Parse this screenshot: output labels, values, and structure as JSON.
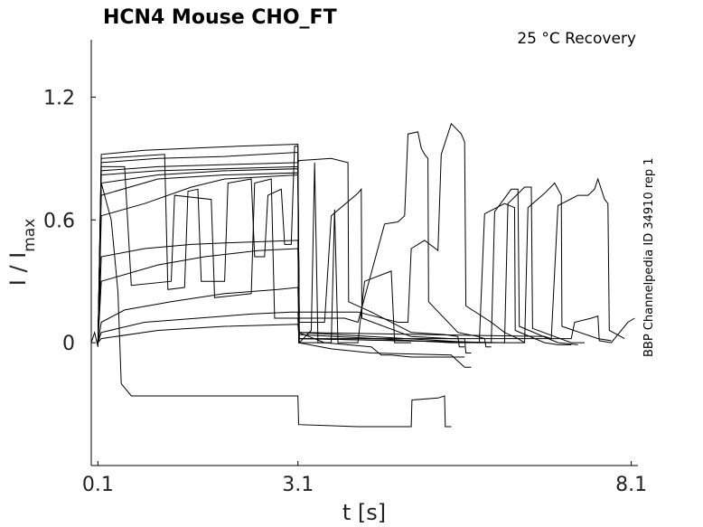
{
  "chart_data": {
    "type": "line",
    "title": "HCN4  Mouse  CHO_FT",
    "annotation": "25 °C  Recovery",
    "side_label": "BBP Channelpedia ID 34910 rep 1",
    "xlabel": "t [s]",
    "ylabel_main": "I / I",
    "ylabel_sub": "max",
    "xlim": [
      0.0,
      8.2
    ],
    "ylim": [
      -0.6,
      1.48
    ],
    "x_ticks": [
      0.1,
      3.1,
      8.1
    ],
    "x_tick_labels": [
      "0.1",
      "3.1",
      "8.1"
    ],
    "y_ticks": [
      0,
      0.6,
      1.2
    ],
    "y_tick_labels": [
      "0",
      "0.6",
      "1.2"
    ],
    "grid": false,
    "series": [
      {
        "points": [
          [
            0.0,
            0.0
          ],
          [
            0.05,
            0.05
          ],
          [
            0.1,
            -0.02
          ],
          [
            0.15,
            0.92
          ],
          [
            0.8,
            0.94
          ],
          [
            1.5,
            0.95
          ],
          [
            2.2,
            0.96
          ],
          [
            3.1,
            0.97
          ],
          [
            3.11,
            0.05
          ],
          [
            3.5,
            0.0
          ],
          [
            4.2,
            -0.02
          ],
          [
            4.35,
            -0.06
          ],
          [
            4.5,
            -0.06
          ],
          [
            4.8,
            -0.07
          ],
          [
            5.2,
            -0.07
          ],
          [
            5.6,
            -0.07
          ]
        ]
      },
      {
        "points": [
          [
            0.1,
            0.0
          ],
          [
            0.15,
            0.88
          ],
          [
            1.0,
            0.9
          ],
          [
            2.0,
            0.91
          ],
          [
            3.1,
            0.93
          ],
          [
            3.11,
            0.0
          ],
          [
            3.6,
            -0.03
          ],
          [
            4.2,
            -0.05
          ],
          [
            5.4,
            -0.06
          ],
          [
            5.6,
            -0.12
          ],
          [
            5.7,
            -0.12
          ]
        ]
      },
      {
        "points": [
          [
            0.1,
            0.0
          ],
          [
            0.15,
            0.84
          ],
          [
            1.0,
            0.86
          ],
          [
            2.0,
            0.87
          ],
          [
            3.1,
            0.88
          ],
          [
            3.12,
            0.89
          ],
          [
            3.6,
            0.9
          ],
          [
            3.85,
            0.88
          ],
          [
            3.86,
            0.2
          ],
          [
            4.2,
            0.15
          ],
          [
            4.8,
            0.05
          ],
          [
            5.3,
            0.04
          ],
          [
            5.5,
            0.03
          ],
          [
            5.52,
            -0.02
          ],
          [
            5.6,
            -0.02
          ]
        ]
      },
      {
        "points": [
          [
            0.1,
            0.0
          ],
          [
            0.15,
            0.82
          ],
          [
            1.0,
            0.84
          ],
          [
            2.0,
            0.85
          ],
          [
            3.1,
            0.86
          ],
          [
            3.12,
            0.1
          ],
          [
            3.5,
            0.1
          ],
          [
            3.6,
            0.62
          ],
          [
            4.0,
            0.73
          ],
          [
            4.05,
            0.75
          ],
          [
            4.06,
            0.12
          ],
          [
            4.8,
            0.03
          ],
          [
            5.4,
            0.02
          ],
          [
            5.6,
            0.02
          ],
          [
            5.62,
            -0.05
          ],
          [
            5.7,
            -0.05
          ]
        ]
      },
      {
        "points": [
          [
            0.1,
            0.0
          ],
          [
            0.15,
            0.78
          ],
          [
            1.0,
            0.82
          ],
          [
            2.0,
            0.84
          ],
          [
            3.1,
            0.85
          ],
          [
            3.12,
            0.12
          ],
          [
            3.8,
            0.12
          ],
          [
            4.0,
            0.1
          ],
          [
            4.4,
            0.58
          ],
          [
            4.6,
            0.59
          ],
          [
            4.7,
            0.62
          ],
          [
            4.75,
            1.02
          ],
          [
            4.9,
            1.03
          ],
          [
            4.95,
            0.95
          ],
          [
            5.0,
            0.92
          ],
          [
            5.05,
            0.9
          ],
          [
            5.06,
            0.2
          ],
          [
            5.5,
            0.05
          ],
          [
            5.8,
            0.03
          ],
          [
            5.9,
            0.02
          ],
          [
            5.92,
            -0.02
          ],
          [
            6.0,
            -0.02
          ]
        ]
      },
      {
        "points": [
          [
            0.1,
            0.0
          ],
          [
            0.15,
            0.72
          ],
          [
            1.0,
            0.8
          ],
          [
            2.0,
            0.82
          ],
          [
            3.1,
            0.83
          ],
          [
            3.12,
            0.15
          ],
          [
            4.0,
            0.15
          ],
          [
            4.6,
            0.1
          ],
          [
            4.75,
            0.1
          ],
          [
            4.8,
            0.46
          ],
          [
            5.0,
            0.5
          ],
          [
            5.2,
            0.45
          ],
          [
            5.25,
            0.92
          ],
          [
            5.4,
            1.07
          ],
          [
            5.55,
            1.02
          ],
          [
            5.6,
            0.98
          ],
          [
            5.62,
            0.18
          ],
          [
            6.0,
            0.1
          ],
          [
            6.2,
            0.05
          ],
          [
            6.4,
            0.02
          ],
          [
            6.5,
            0.0
          ]
        ]
      },
      {
        "points": [
          [
            0.1,
            0.0
          ],
          [
            0.15,
            0.62
          ],
          [
            0.8,
            0.68
          ],
          [
            1.5,
            0.76
          ],
          [
            2.0,
            0.8
          ],
          [
            3.1,
            0.82
          ],
          [
            3.12,
            0.05
          ],
          [
            5.8,
            0.0
          ],
          [
            5.82,
            0.0
          ],
          [
            5.9,
            0.63
          ],
          [
            6.2,
            0.68
          ],
          [
            6.35,
            0.66
          ],
          [
            6.36,
            0.06
          ],
          [
            6.8,
            0.0
          ],
          [
            7.0,
            -0.01
          ],
          [
            7.2,
            -0.01
          ]
        ]
      },
      {
        "points": [
          [
            0.1,
            0.0
          ],
          [
            0.15,
            0.42
          ],
          [
            0.8,
            0.46
          ],
          [
            1.5,
            0.48
          ],
          [
            2.2,
            0.49
          ],
          [
            3.1,
            0.5
          ],
          [
            3.12,
            0.02
          ],
          [
            6.0,
            0.0
          ],
          [
            6.05,
            0.64
          ],
          [
            6.3,
            0.75
          ],
          [
            6.4,
            0.75
          ],
          [
            6.42,
            0.08
          ],
          [
            7.0,
            0.0
          ],
          [
            7.3,
            -0.01
          ]
        ]
      },
      {
        "points": [
          [
            0.1,
            0.0
          ],
          [
            0.15,
            0.3
          ],
          [
            1.0,
            0.38
          ],
          [
            1.7,
            0.42
          ],
          [
            2.5,
            0.45
          ],
          [
            3.1,
            0.46
          ],
          [
            3.12,
            0.02
          ],
          [
            6.2,
            0.0
          ],
          [
            6.25,
            0.68
          ],
          [
            6.5,
            0.76
          ],
          [
            6.6,
            0.76
          ],
          [
            6.62,
            0.07
          ],
          [
            7.2,
            0.0
          ],
          [
            7.4,
            0.0
          ]
        ]
      },
      {
        "points": [
          [
            0.1,
            0.0
          ],
          [
            0.15,
            0.1
          ],
          [
            0.5,
            0.16
          ],
          [
            1.2,
            0.2
          ],
          [
            2.0,
            0.24
          ],
          [
            2.8,
            0.26
          ],
          [
            3.1,
            0.27
          ],
          [
            3.12,
            0.04
          ],
          [
            5.4,
            0.0
          ],
          [
            6.5,
            0.0
          ],
          [
            6.55,
            0.66
          ],
          [
            6.8,
            0.73
          ],
          [
            6.95,
            0.78
          ],
          [
            7.05,
            0.72
          ],
          [
            7.06,
            0.08
          ],
          [
            7.6,
            0.02
          ],
          [
            7.8,
            0.01
          ]
        ]
      },
      {
        "points": [
          [
            0.1,
            0.0
          ],
          [
            0.15,
            0.05
          ],
          [
            0.8,
            0.1
          ],
          [
            1.6,
            0.12
          ],
          [
            2.4,
            0.14
          ],
          [
            3.0,
            0.15
          ],
          [
            3.1,
            0.15
          ],
          [
            3.12,
            0.05
          ],
          [
            6.8,
            0.03
          ],
          [
            6.9,
            0.02
          ],
          [
            7.0,
            0.67
          ],
          [
            7.3,
            0.72
          ],
          [
            7.45,
            0.72
          ],
          [
            7.55,
            0.75
          ],
          [
            7.6,
            0.8
          ],
          [
            7.7,
            0.7
          ],
          [
            7.75,
            0.68
          ],
          [
            7.77,
            0.06
          ],
          [
            8.0,
            0.02
          ]
        ]
      },
      {
        "points": [
          [
            0.1,
            0.0
          ],
          [
            0.15,
            0.02
          ],
          [
            1.0,
            0.06
          ],
          [
            2.0,
            0.08
          ],
          [
            3.1,
            0.09
          ],
          [
            3.12,
            0.02
          ],
          [
            7.2,
            0.02
          ],
          [
            7.25,
            0.1
          ],
          [
            7.5,
            0.12
          ],
          [
            7.6,
            0.13
          ],
          [
            7.62,
            0.01
          ],
          [
            7.8,
            0.0
          ],
          [
            8.05,
            0.1
          ],
          [
            8.15,
            0.12
          ]
        ]
      },
      {
        "points": [
          [
            0.1,
            0.0
          ],
          [
            0.15,
            0.9
          ],
          [
            1.1,
            0.92
          ],
          [
            1.15,
            0.26
          ],
          [
            1.4,
            0.27
          ],
          [
            1.45,
            0.74
          ],
          [
            1.6,
            0.75
          ],
          [
            1.65,
            0.3
          ],
          [
            2.0,
            0.3
          ],
          [
            2.05,
            0.78
          ],
          [
            2.4,
            0.8
          ],
          [
            2.45,
            0.42
          ],
          [
            2.6,
            0.42
          ],
          [
            2.65,
            0.72
          ],
          [
            2.85,
            0.75
          ],
          [
            2.9,
            0.48
          ],
          [
            3.0,
            0.48
          ],
          [
            3.05,
            0.96
          ],
          [
            3.1,
            0.96
          ],
          [
            3.12,
            0.0
          ],
          [
            3.3,
            0.06
          ],
          [
            3.35,
            0.88
          ],
          [
            3.4,
            0.0
          ],
          [
            3.6,
            0.0
          ],
          [
            3.65,
            0.65
          ],
          [
            3.7,
            0.0
          ],
          [
            4.0,
            0.0
          ],
          [
            4.1,
            0.3
          ],
          [
            4.5,
            0.35
          ],
          [
            4.55,
            0.0
          ],
          [
            4.8,
            0.0
          ]
        ]
      },
      {
        "points": [
          [
            0.1,
            0.0
          ],
          [
            0.15,
            0.86
          ],
          [
            0.5,
            0.86
          ],
          [
            0.6,
            0.28
          ],
          [
            1.2,
            0.3
          ],
          [
            1.25,
            0.72
          ],
          [
            1.8,
            0.7
          ],
          [
            1.85,
            0.22
          ],
          [
            2.4,
            0.24
          ],
          [
            2.45,
            0.78
          ],
          [
            2.7,
            0.8
          ],
          [
            2.75,
            0.12
          ],
          [
            3.0,
            0.12
          ],
          [
            3.1,
            0.12
          ],
          [
            3.12,
            0.0
          ],
          [
            3.5,
            0.0
          ]
        ]
      },
      {
        "points": [
          [
            0.1,
            0.0
          ],
          [
            0.15,
            0.78
          ],
          [
            0.3,
            0.6
          ],
          [
            0.4,
            0.25
          ],
          [
            0.45,
            -0.2
          ],
          [
            0.6,
            -0.26
          ],
          [
            1.5,
            -0.26
          ],
          [
            2.5,
            -0.26
          ],
          [
            3.1,
            -0.26
          ],
          [
            3.11,
            -0.4
          ],
          [
            4.0,
            -0.41
          ],
          [
            4.8,
            -0.41
          ],
          [
            4.81,
            -0.28
          ],
          [
            5.2,
            -0.27
          ],
          [
            5.3,
            -0.26
          ],
          [
            5.31,
            -0.41
          ],
          [
            5.4,
            -0.41
          ]
        ]
      }
    ]
  }
}
